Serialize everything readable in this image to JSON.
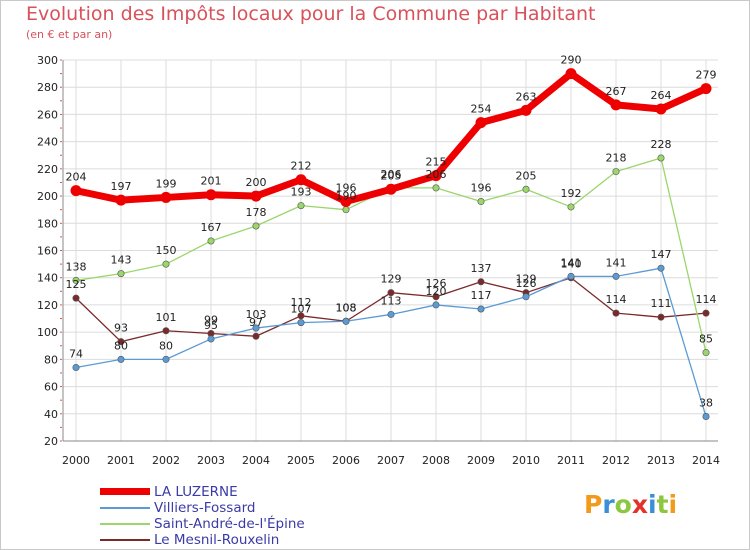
{
  "title": "Evolution des Impôts locaux pour la Commune par Habitant",
  "subtitle": "(en € et par an)",
  "logo": {
    "text": "Proxiti",
    "colors": [
      "#f29a1a",
      "#3b8fd8",
      "#8dc63f",
      "#e2332a",
      "#3b8fd8",
      "#8dc63f",
      "#f29a1a"
    ]
  },
  "chart_data": {
    "type": "line",
    "x": [
      "2000",
      "2001",
      "2002",
      "2003",
      "2004",
      "2005",
      "2006",
      "2007",
      "2008",
      "2009",
      "2010",
      "2011",
      "2012",
      "2013",
      "2014"
    ],
    "ylim": [
      20,
      300
    ],
    "yticks": [
      "20",
      "40",
      "60",
      "80",
      "100",
      "120",
      "140",
      "160",
      "180",
      "200",
      "220",
      "240",
      "260",
      "280",
      "300"
    ],
    "grid": true,
    "legend_position": "bottom-left",
    "series": [
      {
        "name": "LA LUZERNE",
        "color": "#ee0000",
        "values": [
          204,
          197,
          199,
          201,
          200,
          212,
          196,
          205,
          215,
          254,
          263,
          290,
          267,
          264,
          279
        ],
        "labels": [
          "204",
          "197",
          "199",
          "201",
          "200",
          "212",
          "196",
          "205",
          "215",
          "254",
          "263",
          "290",
          "267",
          "264",
          "279"
        ]
      },
      {
        "name": "Villiers-Fossard",
        "color": "#5b9bd5",
        "values": [
          74,
          80,
          80,
          95,
          103,
          107,
          108,
          113,
          120,
          117,
          126,
          141,
          141,
          147,
          38
        ],
        "labels": [
          "74",
          "80",
          "80",
          "95",
          "103",
          "107",
          "108",
          "113",
          "120",
          "117",
          "126",
          "141",
          "141",
          "147",
          "38"
        ]
      },
      {
        "name": "Saint-André-de-l'Épine",
        "color": "#9ad66b",
        "values": [
          138,
          143,
          150,
          167,
          178,
          193,
          190,
          206,
          206,
          196,
          205,
          192,
          218,
          228,
          85
        ],
        "labels": [
          "138",
          "143",
          "150",
          "167",
          "178",
          "193",
          "190",
          "206",
          "206",
          "196",
          "205",
          "192",
          "218",
          "228",
          "85"
        ]
      },
      {
        "name": "Le Mesnil-Rouxelin",
        "color": "#7b2a2a",
        "values": [
          125,
          93,
          101,
          99,
          97,
          112,
          108,
          129,
          126,
          137,
          129,
          140,
          114,
          111,
          114
        ],
        "labels": [
          "125",
          "93",
          "101",
          "99",
          "97",
          "112",
          "108",
          "129",
          "126",
          "137",
          "129",
          "140",
          "114",
          "111",
          "114"
        ]
      }
    ]
  }
}
